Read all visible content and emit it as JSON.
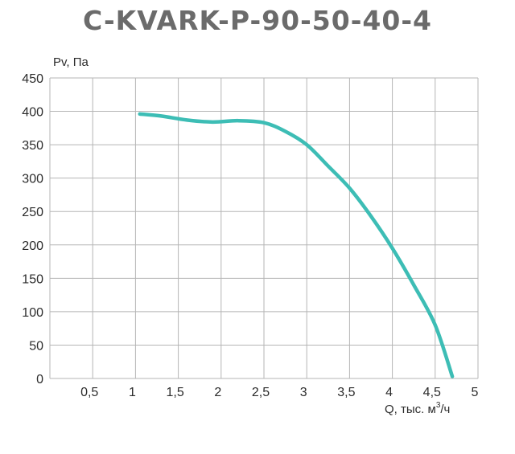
{
  "chart_data": {
    "type": "line",
    "title": "C-KVARK-P-90-50-40-4",
    "ylabel": "Pv, Па",
    "xlabel": "Q, тыс. м",
    "xlabel_sup": "3",
    "xlabel_tail": "/ч",
    "xlim": [
      0,
      5
    ],
    "ylim": [
      0,
      450
    ],
    "xticks": [
      0.5,
      1,
      1.5,
      2,
      2.5,
      3,
      3.5,
      4,
      4.5,
      5
    ],
    "xtick_labels": [
      "0,5",
      "1",
      "1,5",
      "2",
      "2,5",
      "3",
      "3,5",
      "4",
      "4,5",
      "5"
    ],
    "yticks": [
      0,
      50,
      100,
      150,
      200,
      250,
      300,
      350,
      400,
      450
    ],
    "ytick_labels": [
      "0",
      "50",
      "100",
      "150",
      "200",
      "250",
      "300",
      "350",
      "400",
      "450"
    ],
    "grid": true,
    "series": [
      {
        "color": "#3dbdb5",
        "x": [
          1.05,
          1.3,
          1.6,
          1.9,
          2.2,
          2.5,
          2.75,
          3.0,
          3.25,
          3.5,
          3.75,
          4.0,
          4.25,
          4.5,
          4.7
        ],
        "y": [
          396,
          393,
          387,
          384,
          386,
          383,
          370,
          350,
          318,
          285,
          243,
          195,
          140,
          80,
          3
        ]
      }
    ]
  }
}
